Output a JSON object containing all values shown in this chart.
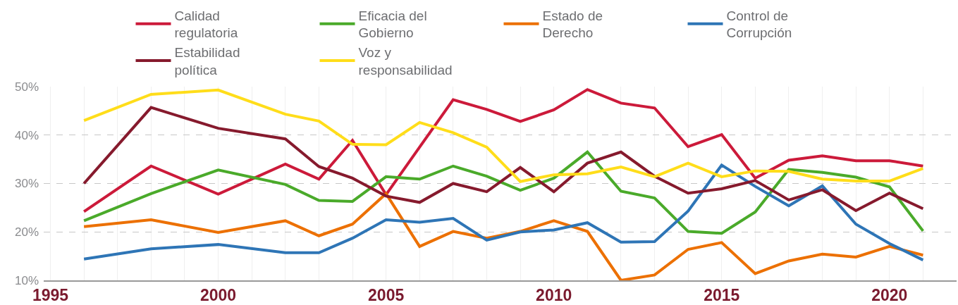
{
  "chart_data": {
    "type": "line",
    "x": [
      1996,
      1998,
      2000,
      2002,
      2003,
      2004,
      2005,
      2006,
      2007,
      2008,
      2009,
      2010,
      2011,
      2012,
      2013,
      2014,
      2015,
      2016,
      2017,
      2018,
      2019,
      2020,
      2021
    ],
    "series": [
      {
        "name": "Calidad regulatoria",
        "color": "#cc1a3a",
        "values": [
          24.2,
          33.6,
          27.8,
          34.0,
          30.9,
          38.9,
          27.7,
          37.5,
          47.3,
          45.3,
          42.8,
          45.2,
          49.4,
          46.6,
          45.6,
          37.6,
          40.1,
          31.1,
          34.8,
          35.7,
          34.7,
          34.7,
          33.6
        ]
      },
      {
        "name": "Eficacia del Gobierno",
        "color": "#4aaa2a",
        "values": [
          22.3,
          27.9,
          32.8,
          29.8,
          26.5,
          26.3,
          31.4,
          30.9,
          33.6,
          31.5,
          28.6,
          31.1,
          36.5,
          28.4,
          27.0,
          20.1,
          19.7,
          24.1,
          32.9,
          32.3,
          31.3,
          29.3,
          20.2
        ]
      },
      {
        "name": "Estado de Derecho",
        "color": "#ec7000",
        "values": [
          21.1,
          22.5,
          19.9,
          22.3,
          19.2,
          21.6,
          27.9,
          17.0,
          20.1,
          18.7,
          20.1,
          22.3,
          20.1,
          10.0,
          11.1,
          16.4,
          17.8,
          11.4,
          14.0,
          15.4,
          14.8,
          17.0,
          15.2
        ]
      },
      {
        "name": "Control de Corrupción",
        "color": "#2e75b6",
        "values": [
          14.4,
          16.5,
          17.4,
          15.7,
          15.7,
          18.7,
          22.5,
          22.0,
          22.8,
          18.3,
          20.0,
          20.4,
          21.9,
          17.9,
          18.0,
          24.3,
          33.8,
          29.4,
          25.4,
          29.5,
          21.6,
          17.6,
          14.2
        ]
      },
      {
        "name": "Estabilidad política",
        "color": "#861a2d",
        "values": [
          30.0,
          45.7,
          41.4,
          39.2,
          33.5,
          31.1,
          27.4,
          26.1,
          30.0,
          28.3,
          33.3,
          28.3,
          34.2,
          36.5,
          31.5,
          28.0,
          28.9,
          30.6,
          26.6,
          28.7,
          24.4,
          28.0,
          24.8
        ]
      },
      {
        "name": "Voz y responsabilidad",
        "color": "#ffdd1a",
        "values": [
          43.0,
          48.4,
          49.3,
          44.3,
          42.9,
          38.1,
          38.0,
          42.6,
          40.5,
          37.5,
          30.4,
          31.8,
          32.0,
          33.4,
          31.4,
          34.2,
          31.4,
          32.6,
          32.5,
          30.9,
          30.5,
          30.5,
          33.1
        ]
      }
    ],
    "xlim": [
      1994.8,
      2022
    ],
    "xticks": [
      1995,
      {
        "value": 1996,
        "label": null
      },
      {
        "value": 1997,
        "label": null
      },
      {
        "value": 1998,
        "label": null
      },
      {
        "value": 1999,
        "label": null
      },
      2000,
      {
        "value": 2001,
        "label": null
      },
      {
        "value": 2002,
        "label": null
      },
      {
        "value": 2003,
        "label": null
      },
      {
        "value": 2004,
        "label": null
      },
      2005,
      {
        "value": 2006,
        "label": null
      },
      {
        "value": 2007,
        "label": null
      },
      {
        "value": 2008,
        "label": null
      },
      {
        "value": 2009,
        "label": null
      },
      2010,
      {
        "value": 2011,
        "label": null
      },
      {
        "value": 2012,
        "label": null
      },
      {
        "value": 2013,
        "label": null
      },
      {
        "value": 2014,
        "label": null
      },
      2015,
      {
        "value": 2016,
        "label": null
      },
      {
        "value": 2017,
        "label": null
      },
      {
        "value": 2018,
        "label": null
      },
      {
        "value": 2019,
        "label": null
      },
      2020,
      {
        "value": 2021,
        "label": null
      }
    ],
    "ylim": [
      10,
      50
    ],
    "yticks": [
      {
        "value": 10,
        "label": "10%"
      },
      {
        "value": 20,
        "label": "20%"
      },
      {
        "value": 30,
        "label": "30%"
      },
      {
        "value": 40,
        "label": "40%"
      },
      {
        "value": 50,
        "label": "50%"
      }
    ],
    "grid": true,
    "legend": "top",
    "marker": "none",
    "line_style": "solid"
  }
}
